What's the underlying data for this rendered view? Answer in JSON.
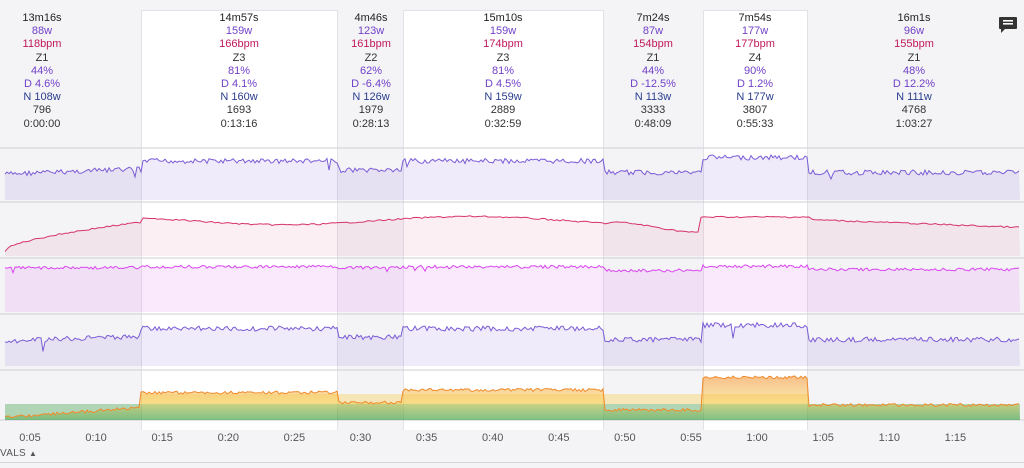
{
  "colors": {
    "power": "#7b5cd6",
    "heart_rate": "#d6336c",
    "cadence": "#d946ef",
    "zone_green": "#2f9a3a",
    "zone_yellow": "#f5c842",
    "zone_orange": "#f08a2a"
  },
  "intervals": [
    {
      "duration": "13m16s",
      "power": "88w",
      "hr": "118bpm",
      "zone": "Z1",
      "pct": "44%",
      "d": "D 4.6%",
      "n": "N 108w",
      "kj": "796",
      "start": "0:00:00",
      "highlighted": false
    },
    {
      "duration": "14m57s",
      "power": "159w",
      "hr": "166bpm",
      "zone": "Z3",
      "pct": "81%",
      "d": "D 4.1%",
      "n": "N 160w",
      "kj": "1693",
      "start": "0:13:16",
      "highlighted": true
    },
    {
      "duration": "4m46s",
      "power": "123w",
      "hr": "161bpm",
      "zone": "Z2",
      "pct": "62%",
      "d": "D -6.4%",
      "n": "N 126w",
      "kj": "1979",
      "start": "0:28:13",
      "highlighted": false
    },
    {
      "duration": "15m10s",
      "power": "159w",
      "hr": "174bpm",
      "zone": "Z3",
      "pct": "81%",
      "d": "D 4.5%",
      "n": "N 159w",
      "kj": "2889",
      "start": "0:32:59",
      "highlighted": true
    },
    {
      "duration": "7m24s",
      "power": "87w",
      "hr": "154bpm",
      "zone": "Z1",
      "pct": "44%",
      "d": "D -12.5%",
      "n": "N 113w",
      "kj": "3333",
      "start": "0:48:09",
      "highlighted": false
    },
    {
      "duration": "7m54s",
      "power": "177w",
      "hr": "177bpm",
      "zone": "Z4",
      "pct": "90%",
      "d": "D 1.2%",
      "n": "N 177w",
      "kj": "3807",
      "start": "0:55:33",
      "highlighted": true
    },
    {
      "duration": "16m1s",
      "power": "96w",
      "hr": "155bpm",
      "zone": "Z1",
      "pct": "48%",
      "d": "D 12.2%",
      "n": "N 111w",
      "kj": "4768",
      "start": "1:03:27",
      "highlighted": false
    }
  ],
  "time_axis": {
    "ticks": [
      "0:05",
      "0:10",
      "0:15",
      "0:20",
      "0:25",
      "0:30",
      "0:35",
      "0:40",
      "0:45",
      "0:50",
      "0:55",
      "1:00",
      "1:05",
      "1:10",
      "1:15"
    ],
    "minutes": [
      5,
      10,
      15,
      20,
      25,
      30,
      35,
      40,
      45,
      50,
      55,
      60,
      65,
      70,
      75
    ]
  },
  "footer": {
    "label": "VALS"
  },
  "icons": {
    "comment": "comment-icon",
    "caret": "caret-up-icon"
  }
}
